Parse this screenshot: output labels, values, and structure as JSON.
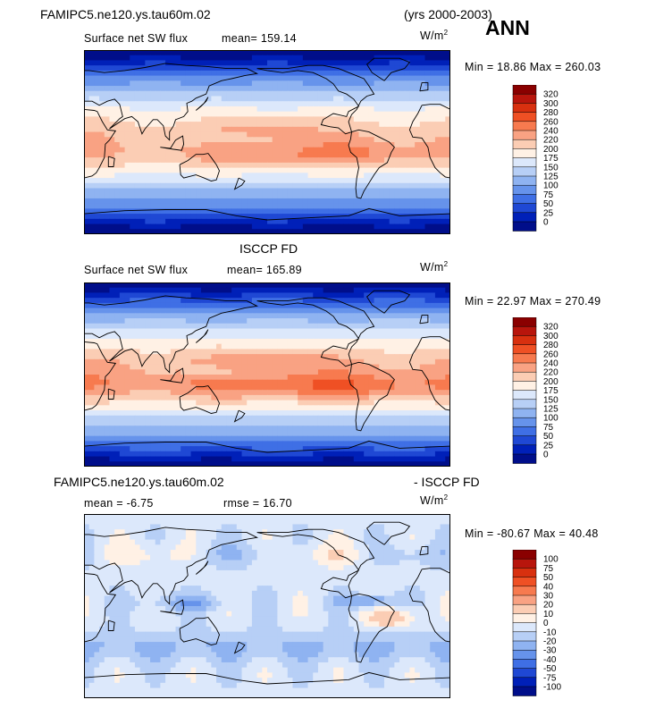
{
  "header": {
    "case_name": "FAMIPC5.ne120.ys.tau60m.02",
    "years": "(yrs 2000-2003)",
    "season": "ANN"
  },
  "chart_data": [
    {
      "type": "heatmap",
      "title": "Surface net SW flux",
      "units": "W/m",
      "units_sup": "2",
      "mean_text": "mean= 159.14",
      "minmax_text": "Min =  18.86 Max = 260.03",
      "levels": [
        "320",
        "300",
        "280",
        "260",
        "240",
        "220",
        "200",
        "175",
        "150",
        "125",
        "100",
        "75",
        "50",
        "25",
        "0"
      ],
      "colors": [
        "#8a0000",
        "#b8150c",
        "#d8300f",
        "#ef5024",
        "#f77a4f",
        "#f9a283",
        "#fbcdb4",
        "#fff1e5",
        "#dce8fb",
        "#b7cff6",
        "#8fb3f1",
        "#6693eb",
        "#3f6fe5",
        "#1f48d4",
        "#0020b8",
        "#000e8a"
      ],
      "field": "sw"
    },
    {
      "type": "heatmap",
      "heading": "ISCCP FD",
      "title": "Surface net SW flux",
      "units": "W/m",
      "units_sup": "2",
      "mean_text": "mean= 165.89",
      "minmax_text": "Min =  22.97 Max = 270.49",
      "levels": [
        "320",
        "300",
        "280",
        "260",
        "240",
        "220",
        "200",
        "175",
        "150",
        "125",
        "100",
        "75",
        "50",
        "25",
        "0"
      ],
      "colors": [
        "#8a0000",
        "#b8150c",
        "#d8300f",
        "#ef5024",
        "#f77a4f",
        "#f9a283",
        "#fbcdb4",
        "#fff1e5",
        "#dce8fb",
        "#b7cff6",
        "#8fb3f1",
        "#6693eb",
        "#3f6fe5",
        "#1f48d4",
        "#0020b8",
        "#000e8a"
      ],
      "field": "obs"
    },
    {
      "type": "heatmap",
      "heading_left": "FAMIPC5.ne120.ys.tau60m.02",
      "heading_right": "- ISCCP FD",
      "mean_text": "mean =  -6.75",
      "rmse_text": "rmse =  16.70",
      "units": "W/m",
      "units_sup": "2",
      "minmax_text": "Min = -80.67 Max =  40.48",
      "levels": [
        "100",
        "75",
        "50",
        "40",
        "30",
        "20",
        "10",
        "0",
        "-10",
        "-20",
        "-30",
        "-40",
        "-50",
        "-75",
        "-100"
      ],
      "colors": [
        "#8a0000",
        "#b8150c",
        "#d8300f",
        "#ef5024",
        "#f77a4f",
        "#f9a283",
        "#fbcdb4",
        "#fff1e5",
        "#dce8fb",
        "#b7cff6",
        "#8fb3f1",
        "#6693eb",
        "#3f6fe5",
        "#1f48d4",
        "#0020b8",
        "#000e8a"
      ],
      "field": "diff"
    }
  ]
}
